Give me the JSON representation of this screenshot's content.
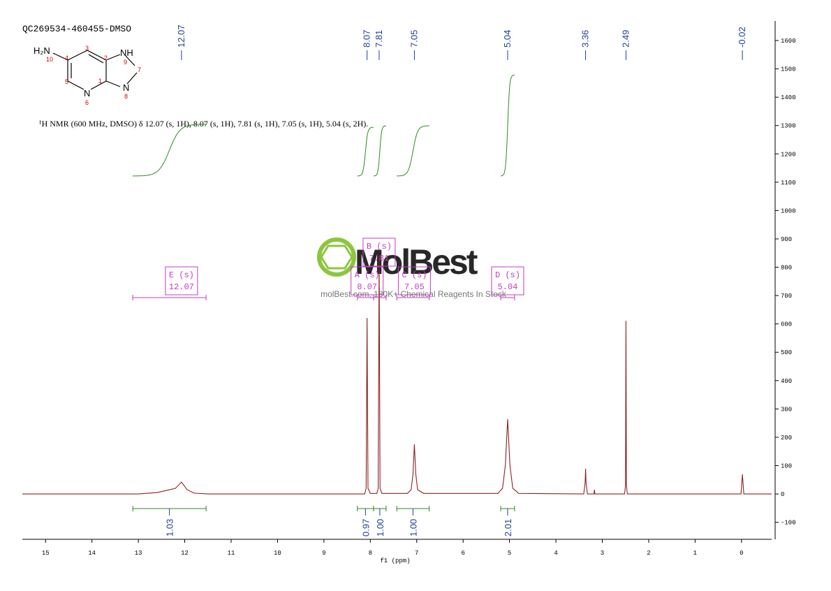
{
  "chart_data": {
    "type": "spectrum",
    "title": "QC269534-460455-DMSO",
    "description": "¹H NMR (600 MHz, DMSO) δ 12.07 (s, 1H), 8.07 (s, 1H), 7.81 (s, 1H), 7.05 (s, 1H), 5.04 (s, 2H).",
    "x_label": "f1 (ppm)",
    "color": "#8b2323",
    "x": [
      15.5,
      13.0,
      12.6,
      12.4,
      12.2,
      12.07,
      11.95,
      11.8,
      11.5,
      8.12,
      8.09,
      8.07,
      8.05,
      8.0,
      7.86,
      7.83,
      7.81,
      7.79,
      7.75,
      7.2,
      7.12,
      7.08,
      7.05,
      7.02,
      6.98,
      6.85,
      5.25,
      5.15,
      5.09,
      5.04,
      4.99,
      4.93,
      4.8,
      3.4,
      3.37,
      3.36,
      3.35,
      3.32,
      3.18,
      3.17,
      3.16,
      2.52,
      2.5,
      2.49,
      2.48,
      2.46,
      0.01,
      -0.02,
      -0.05,
      -0.65
    ],
    "values": [
      0,
      0,
      5,
      12,
      20,
      42,
      15,
      3,
      0,
      0,
      20,
      621,
      20,
      2,
      2,
      20,
      840,
      20,
      2,
      2,
      15,
      70,
      175,
      70,
      15,
      2,
      2,
      20,
      100,
      264,
      100,
      20,
      2,
      0,
      40,
      89,
      40,
      0,
      0,
      15,
      0,
      0,
      30,
      611,
      30,
      0,
      0,
      69,
      0,
      0
    ],
    "xlim": [
      15.5,
      -0.65
    ],
    "xticks": [
      15,
      14,
      13,
      12,
      11,
      10,
      9,
      8,
      7,
      6,
      5,
      4,
      3,
      2,
      1,
      0
    ],
    "ylim": [
      -160,
      1669
    ],
    "yticks": [
      -100,
      0,
      100,
      200,
      300,
      400,
      500,
      600,
      700,
      800,
      900,
      1000,
      1100,
      1200,
      1300,
      1400,
      1500,
      1600
    ],
    "peaks": [
      12.07,
      8.07,
      7.81,
      7.05,
      5.04,
      3.36,
      2.49,
      -0.02
    ],
    "integrals": {
      "ranges": [
        [
          13.12,
          11.54
        ],
        [
          8.28,
          7.93
        ],
        [
          7.93,
          7.66
        ],
        [
          7.43,
          6.73
        ],
        [
          5.19,
          4.89
        ]
      ],
      "values": [
        1.03,
        0.97,
        1,
        1,
        2.01
      ],
      "value_labels": [
        "1.03",
        "0.97",
        "1.00",
        "1.00",
        "2.01"
      ],
      "color": "#2e8b22"
    },
    "multiplets": [
      {
        "label": "E (s)",
        "shift": 12.07
      },
      {
        "label": "A (s)",
        "shift": 8.07
      },
      {
        "label": "B (s)",
        "shift": 7.81
      },
      {
        "label": "C (s)",
        "shift": 7.05
      },
      {
        "label": "D (s)",
        "shift": 5.04
      }
    ],
    "structure": {
      "atoms": [
        "H₂N",
        "NH",
        "N",
        "N"
      ],
      "numbers": [
        "10",
        "4",
        "3",
        "2",
        "9",
        "7",
        "1",
        "5",
        "6",
        "8"
      ]
    },
    "watermark": {
      "logo": "MolBest",
      "slogan": "molBest.com, 180K+ Chemical Reagents In Stock"
    }
  }
}
